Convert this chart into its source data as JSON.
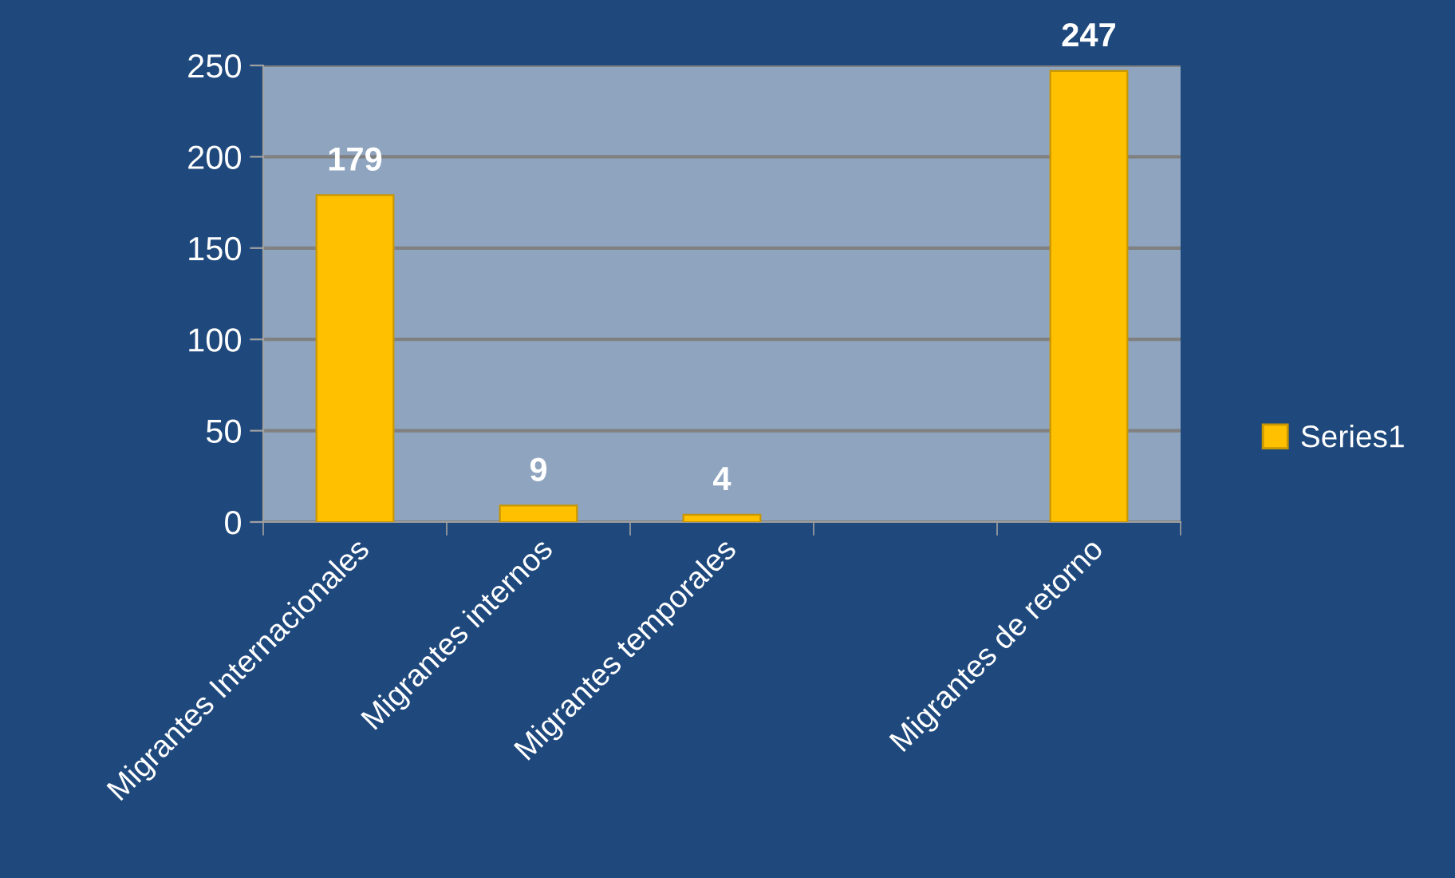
{
  "chart_data": {
    "type": "bar",
    "categories": [
      "Migrantes Internacionales",
      "Migrantes internos",
      "Migrantes temporales",
      null,
      "Migrantes de retorno"
    ],
    "series": [
      {
        "name": "Series1",
        "color": "#ffc000",
        "values": [
          179,
          9,
          4,
          null,
          247
        ]
      }
    ],
    "ylim": [
      0,
      250
    ],
    "yticks": [
      0,
      50,
      100,
      150,
      200,
      250
    ],
    "grid": "y",
    "data_labels": true,
    "legend": "right"
  }
}
